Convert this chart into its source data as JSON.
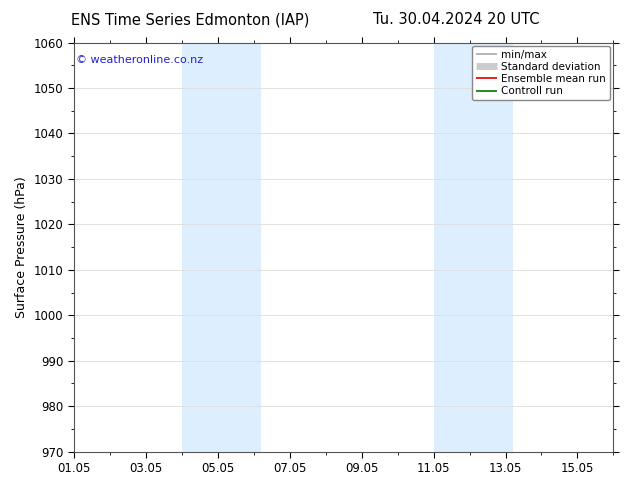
{
  "title_left": "ENS Time Series Edmonton (IAP)",
  "title_right": "Tu. 30.04.2024 20 UTC",
  "ylabel": "Surface Pressure (hPa)",
  "ylim": [
    970,
    1060
  ],
  "yticks": [
    970,
    980,
    990,
    1000,
    1010,
    1020,
    1030,
    1040,
    1050,
    1060
  ],
  "xlim": [
    0,
    15
  ],
  "xtick_labels": [
    "01.05",
    "03.05",
    "05.05",
    "07.05",
    "09.05",
    "11.05",
    "13.05",
    "15.05"
  ],
  "xtick_positions": [
    0,
    2,
    4,
    6,
    8,
    10,
    12,
    14
  ],
  "shade_bands": [
    {
      "xstart": 3.0,
      "xend": 5.2,
      "color": "#ddeeff"
    },
    {
      "xstart": 10.0,
      "xend": 12.2,
      "color": "#ddeeff"
    }
  ],
  "copyright_text": "© weatheronline.co.nz",
  "copyright_color": "#2222cc",
  "legend_items": [
    {
      "label": "min/max",
      "color": "#aaaaaa",
      "lw": 1.2
    },
    {
      "label": "Standard deviation",
      "color": "#cccccc",
      "lw": 5
    },
    {
      "label": "Ensemble mean run",
      "color": "#dd0000",
      "lw": 1.2
    },
    {
      "label": "Controll run",
      "color": "#007700",
      "lw": 1.2
    }
  ],
  "bg_color": "#ffffff",
  "plot_bg_color": "#ffffff",
  "grid_color": "#dddddd",
  "title_fontsize": 10.5,
  "tick_fontsize": 8.5,
  "ylabel_fontsize": 9,
  "legend_fontsize": 7.5
}
